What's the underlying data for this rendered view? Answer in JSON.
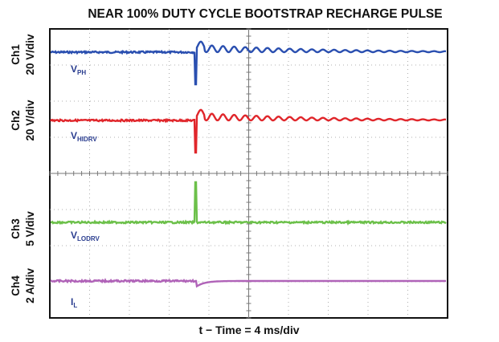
{
  "title": "NEAR 100% DUTY CYCLE BOOTSTRAP RECHARGE PULSE",
  "channels": [
    {
      "name": "Ch1",
      "scale": "20 V/div",
      "trace": "V",
      "subscript": "PH",
      "color": "#2a4fb0"
    },
    {
      "name": "Ch2",
      "scale": "20 V/div",
      "trace": "V",
      "subscript": "HIDRV",
      "color": "#e0262b"
    },
    {
      "name": "Ch3",
      "scale": "5 V/div",
      "trace": "V",
      "subscript": "LODRV",
      "color": "#6cc04a"
    },
    {
      "name": "Ch4",
      "scale": "2 A/div",
      "trace": "I",
      "subscript": "L",
      "color": "#b063b8"
    }
  ],
  "x_label": "t − Time = 4 ms/div"
}
